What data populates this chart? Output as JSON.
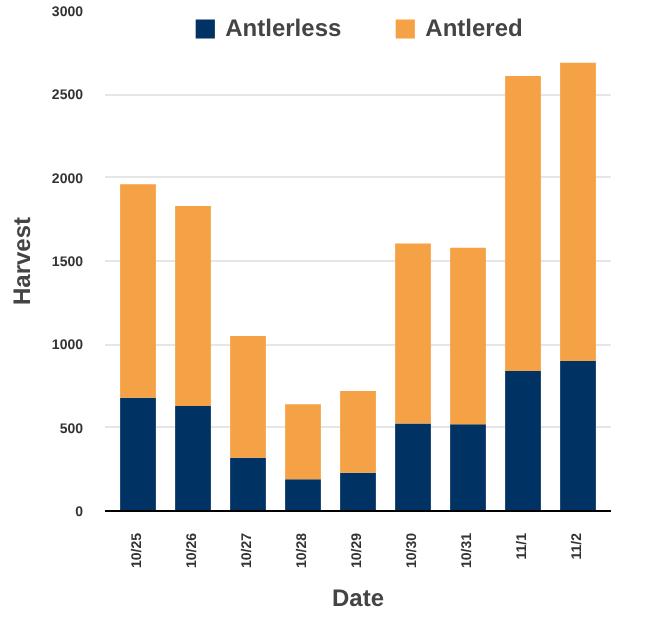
{
  "chart_data": {
    "type": "bar",
    "stacked": true,
    "xlabel": "Date",
    "ylabel": "Harvest",
    "categories": [
      "10/25",
      "10/26",
      "10/27",
      "10/28",
      "10/29",
      "10/30",
      "10/31",
      "11/1",
      "11/2"
    ],
    "series": [
      {
        "name": "Antlerless",
        "color": "#003263",
        "values": [
          680,
          630,
          320,
          190,
          230,
          525,
          520,
          840,
          900
        ]
      },
      {
        "name": "Antlered",
        "color": "#f5a145",
        "values": [
          1280,
          1200,
          730,
          450,
          490,
          1080,
          1060,
          1770,
          1790
        ]
      }
    ],
    "ylim": [
      0,
      3000
    ],
    "yticks": [
      0,
      500,
      1000,
      1500,
      2000,
      2500,
      3000
    ],
    "grid": "y",
    "legend": "top"
  }
}
